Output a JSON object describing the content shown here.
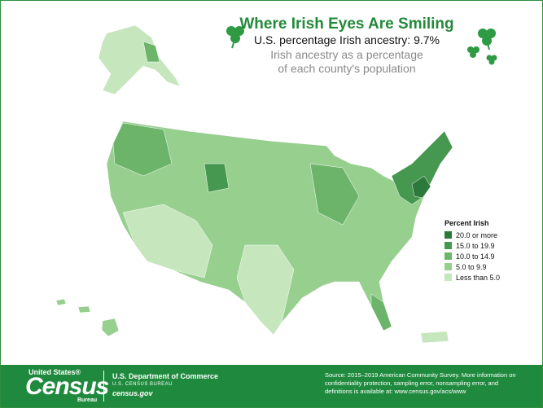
{
  "title": "Where Irish Eyes Are Smiling",
  "subtitle": "U.S. percentage Irish ancestry: 9.7%",
  "description": "Irish ancestry as a percentage of each county's population",
  "legend": {
    "title": "Percent Irish",
    "items": [
      {
        "label": "20.0 or more",
        "color": "#2b7a3b"
      },
      {
        "label": "15.0 to 19.9",
        "color": "#46974f"
      },
      {
        "label": "10.0 to 14.9",
        "color": "#6cb46a"
      },
      {
        "label": "5.0 to 9.9",
        "color": "#97cf8f"
      },
      {
        "label": "Less than 5.0",
        "color": "#c6e6bd"
      }
    ]
  },
  "footer": {
    "logo_top": "United States®",
    "logo_main": "Census",
    "logo_sub": "Bureau",
    "department": "U.S. Department of Commerce",
    "bureau": "U.S. CENSUS BUREAU",
    "website": "census.gov",
    "source": "Source: 2015–2019 American Community Survey. More information on confidentiality protection, sampling error, nonsampling error, and definitions is available at: www.census.gov/acs/www"
  }
}
